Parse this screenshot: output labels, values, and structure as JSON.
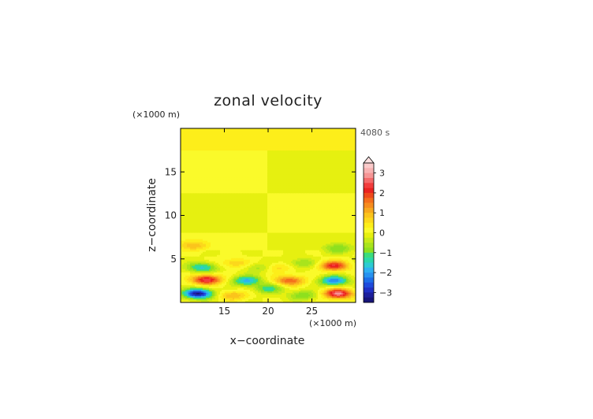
{
  "chart_data": {
    "type": "heatmap",
    "title": "zonal velocity",
    "xlabel": "x−coordinate",
    "ylabel": "z−coordinate",
    "x_unit": "(×1000 m)",
    "y_unit": "(×1000 m)",
    "time_label": "4080 s",
    "xlim": [
      10,
      30
    ],
    "ylim": [
      0,
      20
    ],
    "x_ticks": [
      15,
      20,
      25
    ],
    "y_ticks": [
      5,
      10,
      15
    ],
    "colorbar": {
      "levels": [
        -3.5,
        -3.25,
        -3,
        -2.75,
        -2.5,
        -2.25,
        -2,
        -1.75,
        -1.5,
        -1.25,
        -1,
        -0.75,
        -0.5,
        -0.25,
        0,
        0.25,
        0.5,
        0.75,
        1,
        1.25,
        1.5,
        1.75,
        2,
        2.25,
        2.5,
        2.75,
        3,
        3.25,
        3.5
      ],
      "colors": [
        "#17157a",
        "#1d1f9c",
        "#2030c4",
        "#1f4bdc",
        "#1e6ee8",
        "#2792f0",
        "#2eb0f2",
        "#2ccbd2",
        "#2ad8a8",
        "#3bdc7d",
        "#8ee01f",
        "#a9e41c",
        "#c8ea18",
        "#e6f010",
        "#fafa2a",
        "#fdee1a",
        "#fcd81c",
        "#fbc41c",
        "#f7a81e",
        "#f68c1e",
        "#f46e1c",
        "#ef4a1c",
        "#ea2320",
        "#f23d3d",
        "#f46a6a",
        "#f69696",
        "#f8b2b2",
        "#fbcaca"
      ],
      "tick_labels": [
        "3",
        "2",
        "1",
        "0",
        "−1",
        "−2",
        "−3"
      ],
      "tick_values": [
        3,
        2,
        1,
        0,
        -1,
        -2,
        -3
      ],
      "extend": "max"
    },
    "field_description": "zonal velocity contours in x-z plane; near-zero layered bands aloft (z>6) with a discontinuity at x=20, strong alternating positive/negative lobes below z=6",
    "bands": [
      {
        "z_range": [
          17.5,
          20
        ],
        "left": 0.3,
        "right": 0.25
      },
      {
        "z_range": [
          12.5,
          17.5
        ],
        "left": 0.1,
        "right": -0.1
      },
      {
        "z_range": [
          8,
          12.5
        ],
        "left": -0.15,
        "right": 0.15
      },
      {
        "z_range": [
          6,
          8
        ],
        "left": 0.2,
        "right": -0.1
      }
    ],
    "features": [
      {
        "x": 12,
        "z": 1.0,
        "value": -3.3
      },
      {
        "x": 28,
        "z": 1.0,
        "value": 2.8
      },
      {
        "x": 13,
        "z": 2.6,
        "value": 2.6
      },
      {
        "x": 27.5,
        "z": 2.5,
        "value": -2.2
      },
      {
        "x": 12.5,
        "z": 4.0,
        "value": -1.6
      },
      {
        "x": 27.5,
        "z": 4.2,
        "value": 2.2
      },
      {
        "x": 11.5,
        "z": 6.5,
        "value": 0.9
      },
      {
        "x": 28,
        "z": 6.2,
        "value": -1.0
      },
      {
        "x": 17.5,
        "z": 2.5,
        "value": -1.8
      },
      {
        "x": 22.5,
        "z": 2.5,
        "value": 1.8
      },
      {
        "x": 16,
        "z": 0.8,
        "value": 1.0
      },
      {
        "x": 24,
        "z": 0.8,
        "value": -1.0
      },
      {
        "x": 16.2,
        "z": 4.5,
        "value": 0.8
      },
      {
        "x": 23.8,
        "z": 4.5,
        "value": -0.8
      },
      {
        "x": 19,
        "z": 4.0,
        "value": -0.7
      },
      {
        "x": 21,
        "z": 4.0,
        "value": 0.7
      },
      {
        "x": 20,
        "z": 1.6,
        "value": -1.2
      }
    ]
  }
}
